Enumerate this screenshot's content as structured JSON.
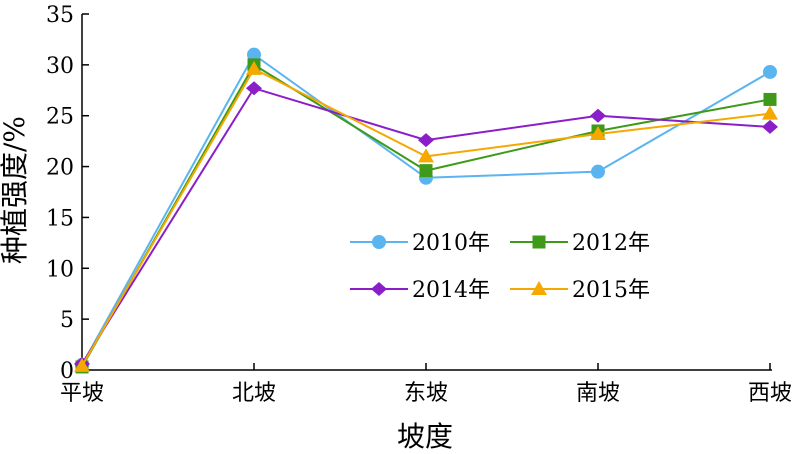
{
  "chart_data": {
    "type": "line",
    "xlabel": "坡度",
    "ylabel": "种植强度/%",
    "categories": [
      "平坡",
      "北坡",
      "东坡",
      "南坡",
      "西坡"
    ],
    "ylim": [
      0,
      35
    ],
    "yticks": [
      0,
      5,
      10,
      15,
      20,
      25,
      30,
      35
    ],
    "grid": false,
    "legend_position": "center-right",
    "series": [
      {
        "name": "2010年",
        "color": "#5ab4ef",
        "marker": "circle",
        "values": [
          0.5,
          31.0,
          18.9,
          19.5,
          29.3
        ]
      },
      {
        "name": "2012年",
        "color": "#3f9a1a",
        "marker": "square",
        "values": [
          0.3,
          30.0,
          19.6,
          23.5,
          26.6
        ]
      },
      {
        "name": "2014年",
        "color": "#8a1ec8",
        "marker": "diamond",
        "values": [
          0.6,
          27.7,
          22.6,
          25.0,
          23.9
        ]
      },
      {
        "name": "2015年",
        "color": "#f5a800",
        "marker": "triangle",
        "values": [
          0.4,
          29.6,
          21.0,
          23.2,
          25.2
        ]
      }
    ]
  }
}
